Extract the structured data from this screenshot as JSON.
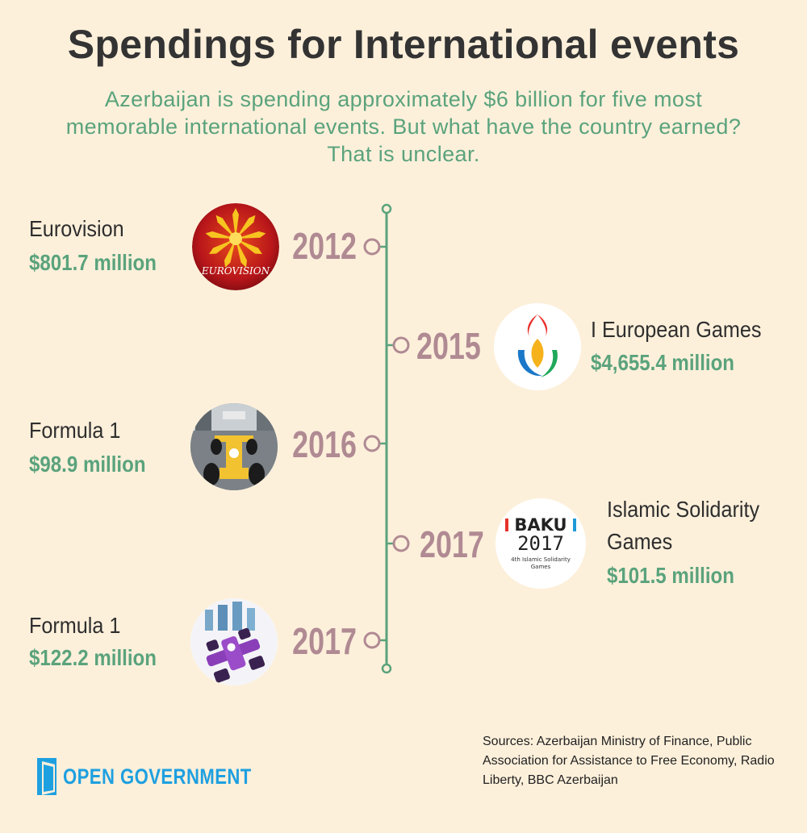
{
  "title": "Spendings for International events",
  "subtitle": "Azerbaijan is spending approximately $6 billion for five most memorable international events. But what have the country earned? That is unclear.",
  "events": [
    {
      "name": "Eurovision",
      "amount": "$801.7 million",
      "year": "2012",
      "icon": "eurovision-logo"
    },
    {
      "name": "I European Games",
      "amount": "$4,655.4 million",
      "year": "2015",
      "icon": "european-games-logo"
    },
    {
      "name": "Formula 1",
      "amount": "$98.9 million",
      "year": "2016",
      "icon": "formula1-car-photo"
    },
    {
      "name_line1": "Islamic Solidarity",
      "name_line2": "Games",
      "amount": "$101.5 million",
      "year": "2017",
      "icon": "baku-2017-logo",
      "logo_line1": "BAKU",
      "logo_line2": "2017",
      "logo_line3": "4th Islamic Solidarity",
      "logo_line4": "Games"
    },
    {
      "name": "Formula 1",
      "amount": "$122.2 million",
      "year": "2017",
      "icon": "formula1-purple-car"
    }
  ],
  "eurovision_logo_text": "EUROVISION",
  "sources": "Sources: Azerbaijan Ministry of Finance, Public Association for Assistance to Free Economy, Radio Liberty, BBC Azerbaijan",
  "brand": "OPEN GOVERNMENT",
  "colors": {
    "background": "#fdf0db",
    "accent_green": "#5aa37c",
    "year": "#b08a93",
    "title": "#333333",
    "brand_blue": "#1ea0e0"
  }
}
